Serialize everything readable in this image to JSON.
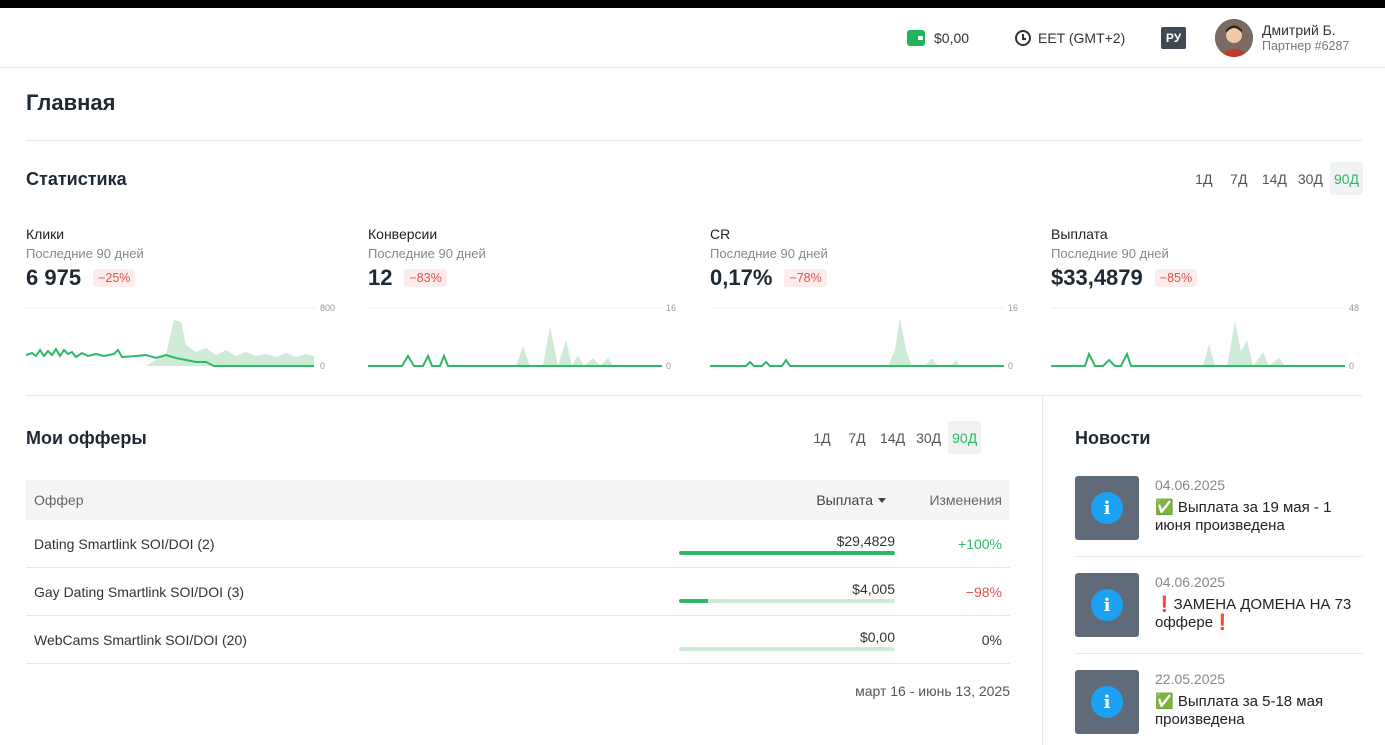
{
  "header": {
    "balance": "$0,00",
    "timezone": "EET (GMT+2)",
    "language": "РУ",
    "user_name": "Дмитрий Б.",
    "user_id": "Партнер #6287"
  },
  "page_title": "Главная",
  "stats": {
    "title": "Статистика",
    "periods": [
      "1Д",
      "7Д",
      "14Д",
      "30Д",
      "90Д"
    ],
    "active_period": "90Д",
    "kpis": [
      {
        "label": "Клики",
        "sub": "Последние 90 дней",
        "value": "6 975",
        "change": "−25%",
        "axis_max": "800",
        "axis_min": "0"
      },
      {
        "label": "Конверсии",
        "sub": "Последние 90 дней",
        "value": "12",
        "change": "−83%",
        "axis_max": "16",
        "axis_min": "0"
      },
      {
        "label": "CR",
        "sub": "Последние 90 дней",
        "value": "0,17%",
        "change": "−78%",
        "axis_max": "16",
        "axis_min": "0"
      },
      {
        "label": "Выплата",
        "sub": "Последние 90 дней",
        "value": "$33,4879",
        "change": "−85%",
        "axis_max": "48",
        "axis_min": "0"
      }
    ]
  },
  "offers": {
    "title": "Мои офферы",
    "periods": [
      "1Д",
      "7Д",
      "14Д",
      "30Д",
      "90Д"
    ],
    "active_period": "90Д",
    "columns": {
      "offer": "Оффер",
      "payout": "Выплата",
      "change": "Изменения"
    },
    "rows": [
      {
        "offer": "Dating Smartlink SOI/DOI (2)",
        "payout": "$29,4829",
        "payout_share": 1.0,
        "change": "+100%",
        "trend": "pos"
      },
      {
        "offer": "Gay Dating Smartlink SOI/DOI (3)",
        "payout": "$4,005",
        "payout_share": 0.136,
        "change": "−98%",
        "trend": "neg"
      },
      {
        "offer": "WebCams Smartlink SOI/DOI (20)",
        "payout": "$0,00",
        "payout_share": 0.0,
        "change": "0%",
        "trend": "neu"
      }
    ],
    "date_range": "март 16 - июнь 13, 2025"
  },
  "news": {
    "title": "Новости",
    "items": [
      {
        "date": "04.06.2025",
        "text": "✅ Выплата за 19 мая - 1 июня произведена"
      },
      {
        "date": "04.06.2025",
        "text": "❗ЗАМЕНА ДОМЕНА НА 73 оффере❗"
      },
      {
        "date": "22.05.2025",
        "text": "✅ Выплата за 5-18 мая произведена"
      }
    ]
  },
  "colors": {
    "accent": "#2fb866",
    "negative": "#e05252",
    "area": "#cdebd6"
  }
}
